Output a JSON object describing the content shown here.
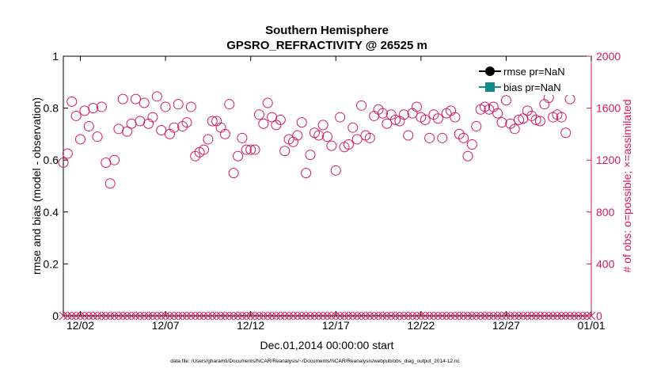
{
  "title_line1": "Southern Hemisphere",
  "title_line2": "GPSRO_REFRACTIVITY @ 26525 m",
  "footer": "data file: /Users/gharamti/Documents/NCAR/Reanalysis/~/Documents/NCAR/Reanalysis/webpub/obs_diag_output_2014-12.nc",
  "colors": {
    "obs": "#d6185f",
    "rmse": "#000000",
    "bias": "#138a8a",
    "axis": "#000000"
  },
  "chart_data": {
    "type": "scatter",
    "xlabel": "Dec.01,2014 00:00:00 start",
    "ylabel_left": "rmse and bias (model - observation)",
    "ylabel_right": "# of obs: o=possible; ×=assimilated",
    "xlim": [
      0,
      31
    ],
    "ylim_left": [
      0,
      1
    ],
    "ylim_right": [
      0,
      2000
    ],
    "left_ticks": [
      "0",
      "0.2",
      "0.4",
      "0.6",
      "0.8",
      "1"
    ],
    "right_ticks": [
      "0",
      "400",
      "800",
      "1200",
      "1600",
      "2000"
    ],
    "x_ticks": [
      {
        "x": 1,
        "label": "12/02"
      },
      {
        "x": 6,
        "label": "12/07"
      },
      {
        "x": 11,
        "label": "12/12"
      },
      {
        "x": 16,
        "label": "12/17"
      },
      {
        "x": 21,
        "label": "12/22"
      },
      {
        "x": 26,
        "label": "12/27"
      },
      {
        "x": 31,
        "label": "01/01"
      }
    ],
    "legend": [
      {
        "name": "rmse pr=NaN",
        "marker": "circle",
        "color": "#000000"
      },
      {
        "name": "bias pr=NaN",
        "marker": "square",
        "color": "#138a8a"
      }
    ],
    "legend_position": "top-right",
    "grid": false,
    "series": [
      {
        "name": "possible",
        "marker": "circle",
        "x_start": 0,
        "x_step": 0.25,
        "values": [
          1180,
          1250,
          1650,
          1540,
          1360,
          1580,
          1460,
          1600,
          1380,
          1610,
          1180,
          1020,
          1200,
          1440,
          1670,
          1420,
          1480,
          1670,
          1500,
          1640,
          1480,
          1530,
          1690,
          1430,
          1610,
          1400,
          1450,
          1630,
          1460,
          1490,
          1610,
          1230,
          1260,
          1280,
          1360,
          1500,
          1500,
          1450,
          1400,
          1630,
          1100,
          1230,
          1370,
          1280,
          1280,
          1280,
          1550,
          1480,
          1640,
          1530,
          1470,
          1510,
          1270,
          1360,
          1340,
          1390,
          1490,
          1100,
          1240,
          1410,
          1390,
          1470,
          1380,
          1310,
          1120,
          1530,
          1300,
          1320,
          1450,
          1360,
          1620,
          1390,
          1370,
          1540,
          1590,
          1560,
          1480,
          1550,
          1510,
          1500,
          1550,
          1390,
          1560,
          1610,
          1530,
          1510,
          1370,
          1550,
          1520,
          1370,
          1560,
          1580,
          1530,
          1400,
          1370,
          1230,
          1320,
          1460,
          1590,
          1610,
          1590,
          1610,
          1560,
          1490,
          1660,
          1480,
          1440,
          1510,
          1520,
          1580,
          1540,
          1510,
          1500,
          1630,
          1680,
          1530,
          1550,
          1530,
          1410,
          1670
        ]
      },
      {
        "name": "assimilated",
        "marker": "x",
        "x_start": 0,
        "x_step": 0.25,
        "count": 125,
        "value": 0
      }
    ]
  }
}
